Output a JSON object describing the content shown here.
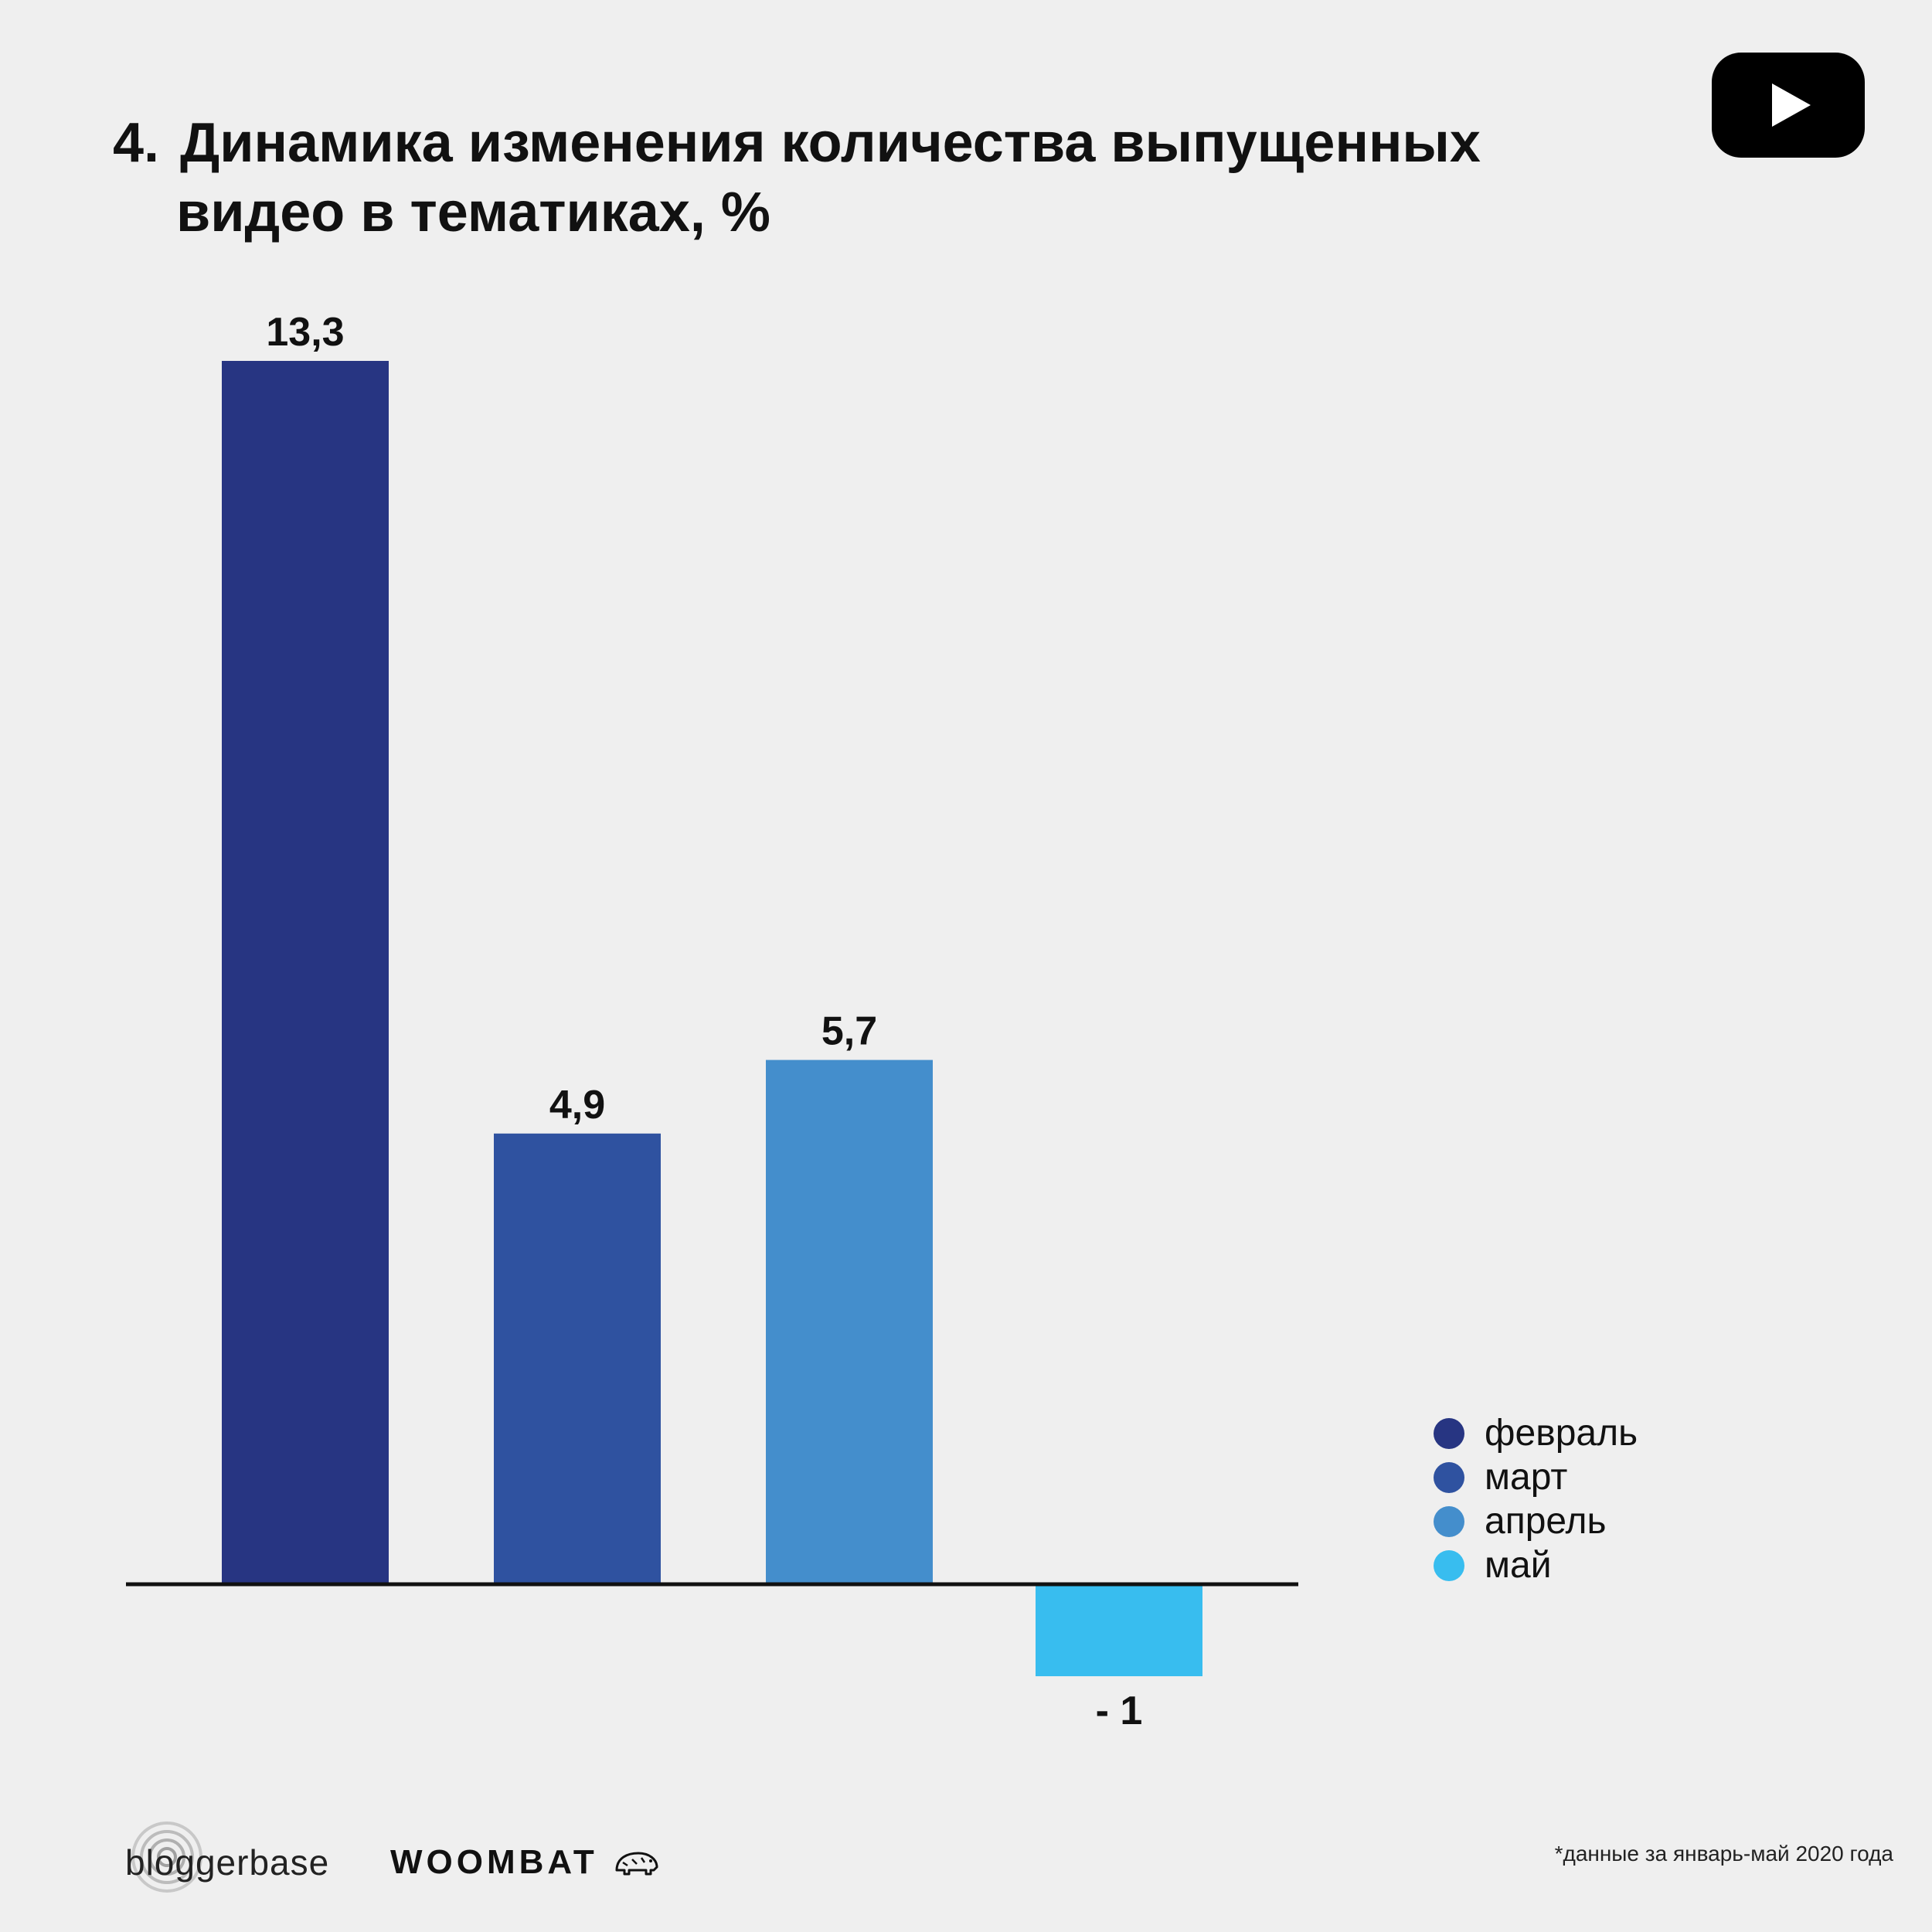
{
  "header": {
    "number": "4.",
    "title_line1": "Динамика изменения количества выпущенных",
    "title_line2": "видео в тематиках, %"
  },
  "chart_data": {
    "type": "bar",
    "title": "4. Динамика изменения количества выпущенных видео в тематиках, %",
    "categories": [
      "февраль",
      "март",
      "апрель",
      "май"
    ],
    "values": [
      13.3,
      4.9,
      5.7,
      -1
    ],
    "value_labels": [
      "13,3",
      "4,9",
      "5,7",
      "- 1"
    ],
    "colors": [
      "#273582",
      "#2f52a0",
      "#448ecc",
      "#38bdef"
    ],
    "ylim": [
      -1.5,
      13.3
    ],
    "grid": false,
    "legend_position": "right"
  },
  "legend": {
    "items": [
      {
        "label": "февраль",
        "color": "#273582"
      },
      {
        "label": "март",
        "color": "#2f52a0"
      },
      {
        "label": "апрель",
        "color": "#448ecc"
      },
      {
        "label": "май",
        "color": "#38bdef"
      }
    ]
  },
  "branding": {
    "bloggerbase": "bloggerbase",
    "woombat": "WOOMBAT",
    "youtube_icon": "youtube-play-icon"
  },
  "footnote": "*данные за январь-май 2020 года"
}
